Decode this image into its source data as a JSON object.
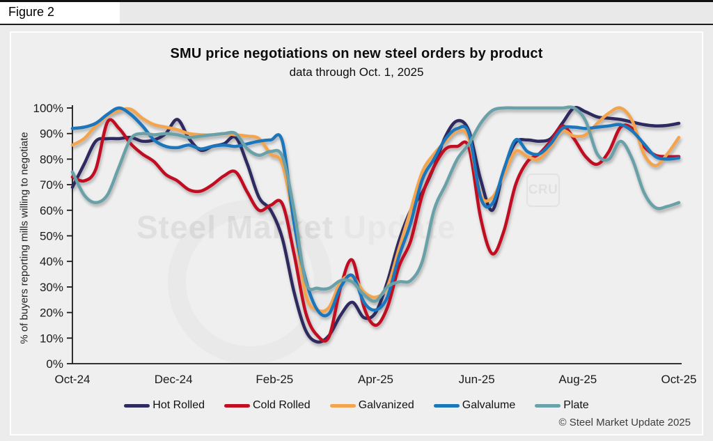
{
  "figure_label": "Figure 2",
  "header": {
    "title": "SMU price negotiations on new steel orders by product",
    "subtitle": "data through Oct. 1, 2025"
  },
  "watermark": {
    "bold_part": "Steel Market",
    "light_part": "Update",
    "logo_text": "CRU"
  },
  "copyright": "© Steel Market Update 2025",
  "chart_data": {
    "type": "line",
    "title": "SMU price negotiations on new steel orders by product",
    "subtitle": "data through Oct. 1, 2025",
    "xlabel": "",
    "ylabel": "% of buyers reporting mills willing to negotiate",
    "ylim": [
      0,
      100
    ],
    "y_tick_labels": [
      "0%",
      "10%",
      "20%",
      "30%",
      "40%",
      "50%",
      "60%",
      "70%",
      "80%",
      "90%",
      "100%"
    ],
    "x_tick_labels": [
      "Oct-24",
      "Dec-24",
      "Feb-25",
      "Apr-25",
      "Jun-25",
      "Aug-25",
      "Oct-25"
    ],
    "x_unit": "weekly observations, Oct 2024 - Oct 2025",
    "grid": false,
    "legend_position": "bottom",
    "background_color": "#efefef",
    "axis_color": "#1a1a1a",
    "series": [
      {
        "name": "Hot Rolled",
        "color": "#2e2c5f",
        "values": [
          69,
          78,
          87,
          88,
          88,
          88.5,
          87,
          87.5,
          90,
          95.5,
          88,
          83.5,
          85,
          86,
          88.5,
          78,
          65,
          60,
          49,
          28,
          13,
          8.5,
          11,
          19,
          24,
          18,
          20,
          32,
          48,
          60,
          67,
          77,
          89,
          95,
          91,
          72,
          60,
          76,
          86.5,
          87.5,
          87,
          88,
          94,
          100,
          98.5,
          96.5,
          96,
          95.5,
          94.5,
          93.5,
          93,
          93.2,
          94
        ]
      },
      {
        "name": "Cold Rolled",
        "color": "#c10e21",
        "values": [
          73,
          71.5,
          76,
          94.5,
          92,
          86,
          82,
          79,
          74,
          71.5,
          68,
          67.5,
          70,
          73.5,
          75,
          67,
          60,
          62,
          62.5,
          43,
          20,
          11,
          10.5,
          30,
          40.5,
          22,
          15,
          22,
          38,
          48,
          66,
          77,
          84,
          85,
          84.5,
          57,
          43,
          52,
          70,
          79,
          82,
          87,
          93,
          88,
          81,
          78,
          83,
          92.5,
          92,
          85,
          81.5,
          81,
          81
        ]
      },
      {
        "name": "Galvanized",
        "color": "#f3a44f",
        "values": [
          85.5,
          88,
          93,
          97,
          99,
          99.5,
          96,
          93.5,
          92.5,
          91.5,
          90,
          89.5,
          89.5,
          90,
          89.5,
          89,
          88,
          82,
          78,
          55,
          27,
          21,
          22,
          32,
          34,
          28,
          26,
          30,
          45,
          60,
          75,
          82,
          87,
          91,
          88,
          66,
          65,
          74,
          83,
          81,
          80,
          85,
          91,
          89,
          89.5,
          94,
          98,
          100,
          95,
          82,
          77.5,
          82,
          88.5
        ]
      },
      {
        "name": "Galvalume",
        "color": "#1b76bc",
        "values": [
          92,
          92.5,
          94,
          97.5,
          100,
          97.5,
          93,
          87.5,
          85,
          84.5,
          85.5,
          84,
          85,
          85.5,
          85,
          86,
          87,
          87.5,
          87,
          55,
          33,
          21,
          19.5,
          30,
          34.5,
          24,
          21,
          26,
          42,
          55,
          72,
          80,
          88,
          92,
          90,
          65,
          62.5,
          76,
          87.5,
          83,
          82,
          86,
          92,
          92.5,
          92,
          92.5,
          93,
          93.5,
          91,
          86,
          81,
          80,
          80.5
        ]
      },
      {
        "name": "Plate",
        "color": "#6ba1a8",
        "values": [
          75,
          66,
          63,
          66,
          77,
          88,
          90,
          89.5,
          90,
          89.5,
          88.5,
          89,
          89.5,
          90,
          90,
          84,
          81.5,
          83,
          81,
          60,
          32,
          29.5,
          29.5,
          32.5,
          32,
          27,
          24.5,
          30,
          32,
          32.5,
          40,
          60,
          70,
          80,
          86,
          94,
          99,
          100,
          100,
          100,
          100,
          100,
          100,
          100,
          95,
          82,
          80,
          87,
          80,
          67,
          61,
          61.5,
          63
        ]
      }
    ]
  }
}
